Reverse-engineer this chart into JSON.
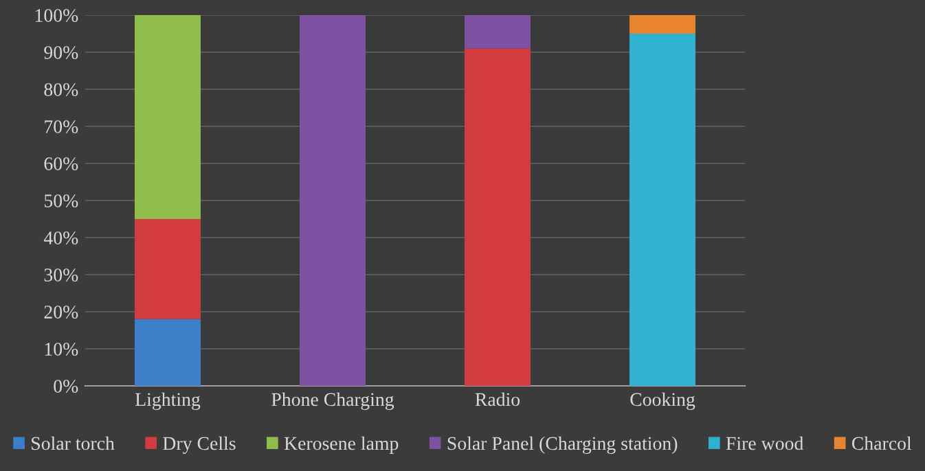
{
  "chart_data": {
    "type": "bar",
    "stacked": true,
    "categories": [
      "Lighting",
      "Phone Charging",
      "Radio",
      "Cooking"
    ],
    "series": [
      {
        "name": "Solar torch",
        "color": "#3a7fc8",
        "values": [
          18,
          null,
          null,
          null
        ]
      },
      {
        "name": "Dry Cells",
        "color": "#d23c3e",
        "values": [
          27,
          null,
          91,
          null
        ]
      },
      {
        "name": "Kerosene lamp",
        "color": "#8fbd4c",
        "values": [
          55,
          null,
          null,
          null
        ]
      },
      {
        "name": "Solar Panel (Charging station)",
        "color": "#7d52a3",
        "values": [
          null,
          100,
          9,
          null
        ]
      },
      {
        "name": "Fire wood",
        "color": "#2fb1cf",
        "values": [
          null,
          null,
          null,
          95
        ]
      },
      {
        "name": "Charcol",
        "color": "#e8832e",
        "values": [
          null,
          null,
          null,
          5
        ]
      }
    ],
    "ylim": [
      0,
      100
    ],
    "yticks": [
      {
        "value": 0,
        "label": "0%"
      },
      {
        "value": 10,
        "label": "10%"
      },
      {
        "value": 20,
        "label": "20%"
      },
      {
        "value": 30,
        "label": "30%"
      },
      {
        "value": 40,
        "label": "40%"
      },
      {
        "value": 50,
        "label": "50%"
      },
      {
        "value": 60,
        "label": "60%"
      },
      {
        "value": 70,
        "label": "70%"
      },
      {
        "value": 80,
        "label": "80%"
      },
      {
        "value": 90,
        "label": "90%"
      },
      {
        "value": 100,
        "label": "100%"
      }
    ],
    "grid": "y",
    "legend": "bottom"
  }
}
